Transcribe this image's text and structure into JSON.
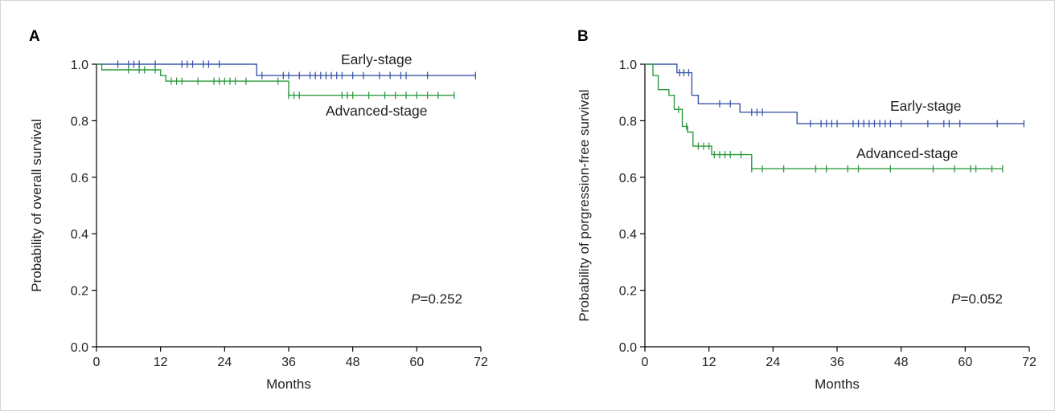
{
  "chart_data": [
    {
      "type": "line",
      "panel": "A",
      "title": "",
      "xlabel": "Months",
      "ylabel": "Probability of overall survival",
      "xlim": [
        0,
        72
      ],
      "ylim": [
        0,
        1.0
      ],
      "xticks": [
        "0",
        "12",
        "24",
        "36",
        "48",
        "60",
        "72"
      ],
      "yticks": [
        "0.0",
        "0.2",
        "0.4",
        "0.6",
        "0.8",
        "1.0"
      ],
      "annotation": {
        "prefix": "P",
        "value": "=0.252"
      },
      "grid": false,
      "series": [
        {
          "name": "Early-stage",
          "color": "#3a57a7",
          "steps": [
            [
              0,
              1.0
            ],
            [
              30,
              1.0
            ],
            [
              30,
              0.96
            ],
            [
              71,
              0.96
            ]
          ],
          "censored": [
            [
              4,
              1.0
            ],
            [
              6,
              1.0
            ],
            [
              7,
              1.0
            ],
            [
              8,
              1.0
            ],
            [
              11,
              1.0
            ],
            [
              16,
              1.0
            ],
            [
              17,
              1.0
            ],
            [
              18,
              1.0
            ],
            [
              20,
              1.0
            ],
            [
              21,
              1.0
            ],
            [
              23,
              1.0
            ],
            [
              31,
              0.96
            ],
            [
              35,
              0.96
            ],
            [
              36,
              0.96
            ],
            [
              38,
              0.96
            ],
            [
              40,
              0.96
            ],
            [
              41,
              0.96
            ],
            [
              42,
              0.96
            ],
            [
              43,
              0.96
            ],
            [
              44,
              0.96
            ],
            [
              45,
              0.96
            ],
            [
              46,
              0.96
            ],
            [
              48,
              0.96
            ],
            [
              50,
              0.96
            ],
            [
              53,
              0.96
            ],
            [
              55,
              0.96
            ],
            [
              57,
              0.96
            ],
            [
              58,
              0.96
            ],
            [
              62,
              0.96
            ],
            [
              71,
              0.96
            ]
          ]
        },
        {
          "name": "Advanced-stage",
          "color": "#2e9a3e",
          "steps": [
            [
              0,
              1.0
            ],
            [
              1,
              1.0
            ],
            [
              1,
              0.98
            ],
            [
              12,
              0.98
            ],
            [
              12,
              0.96
            ],
            [
              13,
              0.96
            ],
            [
              13,
              0.94
            ],
            [
              36,
              0.94
            ],
            [
              36,
              0.89
            ],
            [
              67,
              0.89
            ]
          ],
          "censored": [
            [
              6,
              0.98
            ],
            [
              8,
              0.98
            ],
            [
              9,
              0.98
            ],
            [
              11,
              0.98
            ],
            [
              14,
              0.94
            ],
            [
              15,
              0.94
            ],
            [
              16,
              0.94
            ],
            [
              19,
              0.94
            ],
            [
              22,
              0.94
            ],
            [
              23,
              0.94
            ],
            [
              24,
              0.94
            ],
            [
              25,
              0.94
            ],
            [
              26,
              0.94
            ],
            [
              28,
              0.94
            ],
            [
              34,
              0.94
            ],
            [
              36,
              0.89
            ],
            [
              37,
              0.89
            ],
            [
              38,
              0.89
            ],
            [
              46,
              0.89
            ],
            [
              47,
              0.89
            ],
            [
              48,
              0.89
            ],
            [
              51,
              0.89
            ],
            [
              54,
              0.89
            ],
            [
              56,
              0.89
            ],
            [
              58,
              0.89
            ],
            [
              60,
              0.89
            ],
            [
              62,
              0.89
            ],
            [
              64,
              0.89
            ],
            [
              67,
              0.89
            ]
          ]
        }
      ]
    },
    {
      "type": "line",
      "panel": "B",
      "title": "",
      "xlabel": "Months",
      "ylabel": "Probability of porgression-free survival",
      "xlim": [
        0,
        72
      ],
      "ylim": [
        0,
        1.0
      ],
      "xticks": [
        "0",
        "12",
        "24",
        "36",
        "48",
        "60",
        "72"
      ],
      "yticks": [
        "0.0",
        "0.2",
        "0.4",
        "0.6",
        "0.8",
        "1.0"
      ],
      "annotation": {
        "prefix": "P",
        "value": "=0.052"
      },
      "grid": false,
      "series": [
        {
          "name": "Early-stage",
          "color": "#3a57a7",
          "steps": [
            [
              0,
              1.0
            ],
            [
              6,
              1.0
            ],
            [
              6,
              0.97
            ],
            [
              8.8,
              0.97
            ],
            [
              8.8,
              0.89
            ],
            [
              10,
              0.89
            ],
            [
              10,
              0.86
            ],
            [
              17.8,
              0.86
            ],
            [
              17.8,
              0.83
            ],
            [
              28.5,
              0.83
            ],
            [
              28.5,
              0.79
            ],
            [
              71,
              0.79
            ]
          ],
          "censored": [
            [
              6.5,
              0.97
            ],
            [
              7.3,
              0.97
            ],
            [
              8.2,
              0.97
            ],
            [
              14,
              0.86
            ],
            [
              16,
              0.86
            ],
            [
              20,
              0.83
            ],
            [
              21,
              0.83
            ],
            [
              22,
              0.83
            ],
            [
              31,
              0.79
            ],
            [
              33,
              0.79
            ],
            [
              34,
              0.79
            ],
            [
              35,
              0.79
            ],
            [
              36,
              0.79
            ],
            [
              39,
              0.79
            ],
            [
              40,
              0.79
            ],
            [
              41,
              0.79
            ],
            [
              42,
              0.79
            ],
            [
              43,
              0.79
            ],
            [
              44,
              0.79
            ],
            [
              45,
              0.79
            ],
            [
              46,
              0.79
            ],
            [
              48,
              0.79
            ],
            [
              53,
              0.79
            ],
            [
              56,
              0.79
            ],
            [
              57,
              0.79
            ],
            [
              59,
              0.79
            ],
            [
              66,
              0.79
            ],
            [
              71,
              0.79
            ]
          ]
        },
        {
          "name": "Advanced-stage",
          "color": "#2e9a3e",
          "steps": [
            [
              0,
              1.0
            ],
            [
              1.5,
              1.0
            ],
            [
              1.5,
              0.96
            ],
            [
              2.5,
              0.96
            ],
            [
              2.5,
              0.91
            ],
            [
              4.5,
              0.91
            ],
            [
              4.5,
              0.89
            ],
            [
              5.5,
              0.89
            ],
            [
              5.5,
              0.84
            ],
            [
              7,
              0.84
            ],
            [
              7,
              0.78
            ],
            [
              8,
              0.78
            ],
            [
              8,
              0.76
            ],
            [
              9,
              0.76
            ],
            [
              9,
              0.71
            ],
            [
              12.5,
              0.71
            ],
            [
              12.5,
              0.68
            ],
            [
              20,
              0.68
            ],
            [
              20,
              0.63
            ],
            [
              67,
              0.63
            ]
          ],
          "censored": [
            [
              6.3,
              0.84
            ],
            [
              7.8,
              0.78
            ],
            [
              10,
              0.71
            ],
            [
              11,
              0.71
            ],
            [
              12,
              0.71
            ],
            [
              13,
              0.68
            ],
            [
              14,
              0.68
            ],
            [
              15,
              0.68
            ],
            [
              16,
              0.68
            ],
            [
              18,
              0.68
            ],
            [
              20,
              0.63
            ],
            [
              22,
              0.63
            ],
            [
              26,
              0.63
            ],
            [
              32,
              0.63
            ],
            [
              34,
              0.63
            ],
            [
              38,
              0.63
            ],
            [
              40,
              0.63
            ],
            [
              46,
              0.63
            ],
            [
              54,
              0.63
            ],
            [
              58,
              0.63
            ],
            [
              61,
              0.63
            ],
            [
              62,
              0.63
            ],
            [
              65,
              0.63
            ],
            [
              67,
              0.63
            ]
          ]
        }
      ]
    }
  ]
}
